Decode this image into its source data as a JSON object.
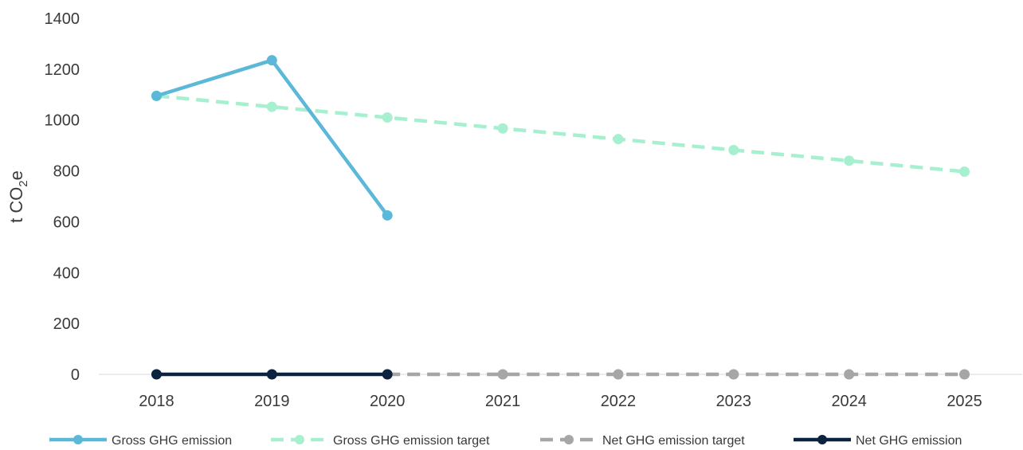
{
  "chart_data": {
    "type": "line",
    "title": "",
    "xlabel": "",
    "ylabel": "t CO2e",
    "ylabel_parts": {
      "main": "t CO",
      "sub": "2",
      "tail": "e"
    },
    "categories": [
      "2018",
      "2019",
      "2020",
      "2021",
      "2022",
      "2023",
      "2024",
      "2025"
    ],
    "ylim": [
      0,
      1400
    ],
    "yticks": [
      0,
      200,
      400,
      600,
      800,
      1000,
      1200,
      1400
    ],
    "grid": false,
    "legend_position": "bottom",
    "series": [
      {
        "name": "Gross GHG emission",
        "values": [
          1095,
          1235,
          625,
          null,
          null,
          null,
          null,
          null
        ],
        "color": "#5bb8d8",
        "dashed": false,
        "marker": "circle"
      },
      {
        "name": "Gross GHG emission target",
        "values": [
          1095,
          1052,
          1010,
          967,
          925,
          882,
          840,
          797
        ],
        "color": "#a6f0cf",
        "dashed": true,
        "marker": "circle"
      },
      {
        "name": "Net GHG emission target",
        "values": [
          null,
          null,
          0,
          0,
          0,
          0,
          0,
          0
        ],
        "color": "#a6a6a6",
        "dashed": true,
        "marker": "circle"
      },
      {
        "name": "Net GHG emission",
        "values": [
          0,
          0,
          0,
          null,
          null,
          null,
          null,
          null
        ],
        "color": "#0c2340",
        "dashed": false,
        "marker": "circle"
      }
    ]
  }
}
